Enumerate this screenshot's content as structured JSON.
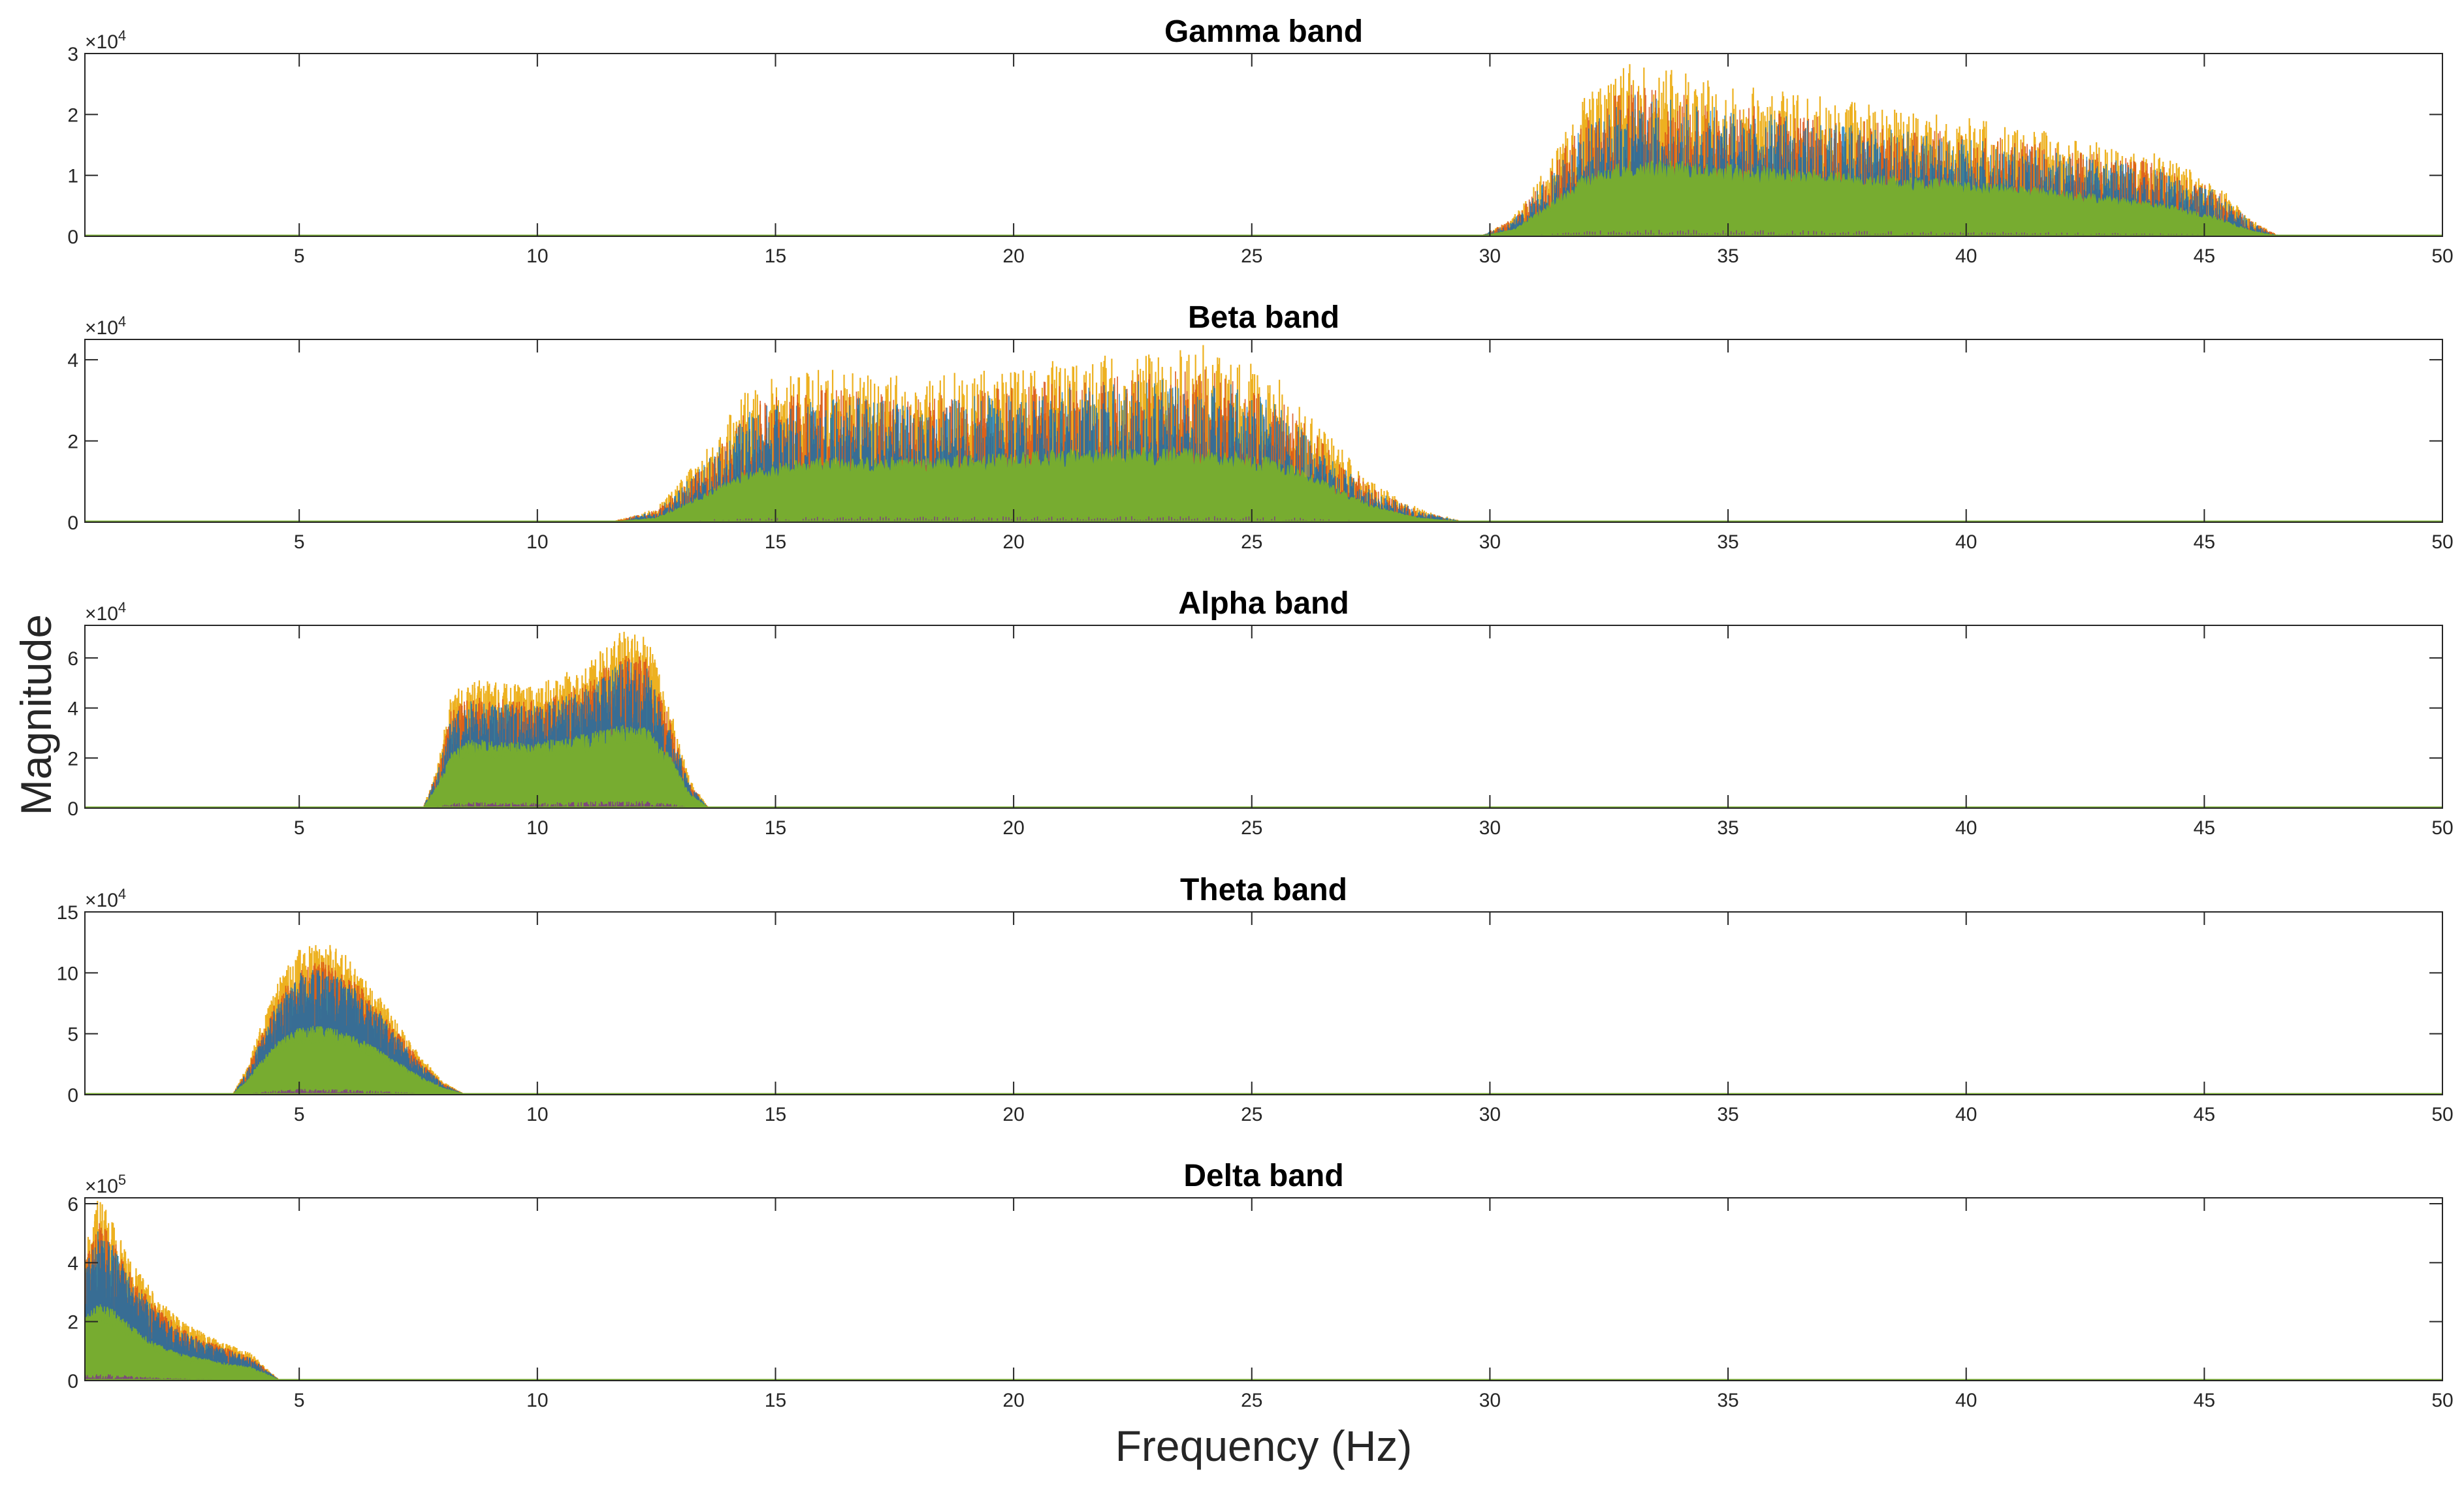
{
  "figure": {
    "xlabel": "Frequency (Hz)",
    "ylabel": "Magnitude"
  },
  "colors": {
    "green": "#77ac30",
    "yellow": "#edb120",
    "orange": "#d95319",
    "blue": "#0072bd",
    "purple": "#7e2f8e",
    "lightblue": "#4dbeee",
    "axis": "#262626"
  },
  "chart_data": [
    {
      "type": "area",
      "title": "Gamma band",
      "xlim": [
        0.5,
        50
      ],
      "ylim": [
        0,
        3
      ],
      "exponent_label": "×10",
      "exponent_power": "4",
      "x_ticks": [
        "5",
        "10",
        "15",
        "20",
        "25",
        "30",
        "35",
        "40",
        "45",
        "50"
      ],
      "y_ticks": [
        "0",
        "1",
        "2",
        "3"
      ],
      "band_range": [
        30,
        46.5
      ],
      "profile_x": [
        29.8,
        30.5,
        31.2,
        32,
        33,
        35,
        38,
        41,
        44,
        45.2,
        46,
        46.6
      ],
      "profile_y": [
        0,
        0.2,
        0.7,
        1.3,
        1.7,
        1.6,
        1.35,
        1.1,
        0.8,
        0.5,
        0.15,
        0
      ],
      "series": [
        {
          "name": "envelope (yellow)",
          "values": [
            0,
            0.3,
            1.0,
            2.0,
            2.5,
            2.2,
            1.9,
            1.6,
            1.2,
            0.8,
            0.25,
            0
          ]
        },
        {
          "name": "fill (green)",
          "values": [
            0,
            0.1,
            0.45,
            0.9,
            1.1,
            1.05,
            0.9,
            0.75,
            0.5,
            0.3,
            0.08,
            0
          ]
        }
      ]
    },
    {
      "type": "area",
      "title": "Beta band",
      "xlim": [
        0.5,
        50
      ],
      "ylim": [
        0,
        4.5
      ],
      "exponent_label": "×10",
      "exponent_power": "4",
      "x_ticks": [
        "5",
        "10",
        "15",
        "20",
        "25",
        "30",
        "35",
        "40",
        "45",
        "50"
      ],
      "y_ticks": [
        "0",
        "2",
        "4"
      ],
      "band_range": [
        12,
        30
      ],
      "profile_x": [
        11.5,
        12.5,
        13.5,
        14.5,
        16,
        18,
        20,
        22,
        24,
        25.5,
        26.5,
        27.5,
        28.5,
        29.5
      ],
      "profile_y": [
        0,
        0.2,
        0.9,
        2.0,
        2.3,
        2.1,
        2.3,
        2.6,
        2.7,
        2.3,
        1.5,
        0.7,
        0.2,
        0
      ],
      "series": [
        {
          "name": "envelope (yellow)",
          "values": [
            0,
            0.3,
            1.5,
            3.0,
            3.3,
            3.1,
            3.4,
            3.6,
            3.8,
            3.2,
            2.0,
            0.9,
            0.3,
            0
          ]
        },
        {
          "name": "fill (green)",
          "values": [
            0,
            0.1,
            0.6,
            1.2,
            1.4,
            1.4,
            1.5,
            1.6,
            1.6,
            1.4,
            0.9,
            0.4,
            0.1,
            0
          ]
        }
      ]
    },
    {
      "type": "area",
      "title": "Alpha band",
      "xlim": [
        0.5,
        50
      ],
      "ylim": [
        0,
        7.3
      ],
      "exponent_label": "×10",
      "exponent_power": "4",
      "x_ticks": [
        "5",
        "10",
        "15",
        "20",
        "25",
        "30",
        "35",
        "40",
        "45",
        "50"
      ],
      "y_ticks": [
        "0",
        "2",
        "4",
        "6"
      ],
      "band_range": [
        7.7,
        13.5
      ],
      "profile_x": [
        7.6,
        7.9,
        8.2,
        8.6,
        9.2,
        10,
        11,
        11.8,
        12.3,
        12.8,
        13.2,
        13.6
      ],
      "profile_y": [
        0,
        1.0,
        2.8,
        3.4,
        3.3,
        3.2,
        3.7,
        4.3,
        4.0,
        2.5,
        0.8,
        0
      ],
      "series": [
        {
          "name": "envelope (yellow)",
          "values": [
            0,
            1.5,
            4.0,
            4.5,
            4.4,
            4.3,
            5.0,
            6.2,
            6.0,
            3.5,
            1.0,
            0
          ]
        },
        {
          "name": "fill (green)",
          "values": [
            0,
            0.8,
            2.0,
            2.4,
            2.3,
            2.3,
            2.6,
            2.9,
            2.8,
            1.8,
            0.5,
            0
          ]
        }
      ]
    },
    {
      "type": "area",
      "title": "Theta band",
      "xlim": [
        0.5,
        50
      ],
      "ylim": [
        0,
        15
      ],
      "exponent_label": "×10",
      "exponent_power": "4",
      "x_ticks": [
        "5",
        "10",
        "15",
        "20",
        "25",
        "30",
        "35",
        "40",
        "45",
        "50"
      ],
      "y_ticks": [
        "0",
        "5",
        "10",
        "15"
      ],
      "band_range": [
        3.7,
        8.5
      ],
      "profile_x": [
        3.6,
        3.9,
        4.2,
        4.6,
        5,
        5.5,
        6,
        6.5,
        7,
        7.5,
        8,
        8.5
      ],
      "profile_y": [
        0,
        1.5,
        3.5,
        5.5,
        6.5,
        6.8,
        6.3,
        5.0,
        3.5,
        2.0,
        0.8,
        0
      ],
      "series": [
        {
          "name": "envelope (yellow)",
          "values": [
            0,
            2.0,
            5.0,
            8.5,
            10.5,
            11.0,
            10.0,
            8.0,
            5.5,
            3.0,
            1.0,
            0
          ]
        },
        {
          "name": "fill (green)",
          "values": [
            0,
            1.0,
            2.5,
            4.0,
            4.8,
            5.0,
            4.5,
            3.6,
            2.5,
            1.4,
            0.5,
            0
          ]
        }
      ]
    },
    {
      "type": "area",
      "title": "Delta band",
      "xlim": [
        0.5,
        50
      ],
      "ylim": [
        0,
        6.2
      ],
      "exponent_label": "×10",
      "exponent_power": "5",
      "x_ticks": [
        "5",
        "10",
        "15",
        "20",
        "25",
        "30",
        "35",
        "40",
        "45",
        "50"
      ],
      "y_ticks": [
        "0",
        "2",
        "4",
        "6"
      ],
      "band_range": [
        0.5,
        4.5
      ],
      "profile_x": [
        0.5,
        0.8,
        1.1,
        1.5,
        2,
        2.5,
        3,
        3.5,
        4,
        4.3,
        4.6
      ],
      "profile_y": [
        2.5,
        3.3,
        3.0,
        2.3,
        1.6,
        1.2,
        1.0,
        0.8,
        0.6,
        0.3,
        0
      ],
      "series": [
        {
          "name": "envelope (yellow)",
          "values": [
            4.0,
            5.5,
            4.8,
            3.5,
            2.5,
            1.8,
            1.4,
            1.1,
            0.8,
            0.4,
            0
          ]
        },
        {
          "name": "fill (green)",
          "values": [
            1.9,
            2.3,
            2.1,
            1.6,
            1.1,
            0.8,
            0.65,
            0.5,
            0.4,
            0.2,
            0
          ]
        }
      ]
    }
  ]
}
